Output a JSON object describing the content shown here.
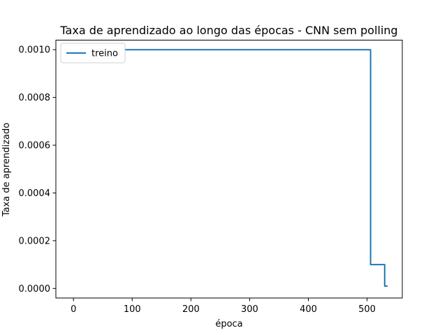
{
  "chart_data": {
    "type": "line",
    "title": "Taxa de aprendizado ao longo das épocas - CNN sem polling",
    "xlabel": "época",
    "ylabel": "Taxa de aprendizado",
    "xlim": [
      -30,
      560
    ],
    "ylim": [
      -4e-05,
      0.00104
    ],
    "xticks": [
      0,
      100,
      200,
      300,
      400,
      500
    ],
    "xtick_labels": [
      "0",
      "100",
      "200",
      "300",
      "400",
      "500"
    ],
    "yticks": [
      0.0,
      0.0002,
      0.0004,
      0.0006,
      0.0008,
      0.001
    ],
    "ytick_labels": [
      "0.0000",
      "0.0002",
      "0.0004",
      "0.0006",
      "0.0008",
      "0.0010"
    ],
    "grid": false,
    "legend_position": "top-left",
    "series": [
      {
        "name": "treino",
        "color": "#1f77b4",
        "x": [
          0,
          506,
          506,
          530,
          530,
          535
        ],
        "y": [
          0.001,
          0.001,
          0.0001,
          0.0001,
          1e-05,
          1e-05
        ]
      }
    ]
  }
}
